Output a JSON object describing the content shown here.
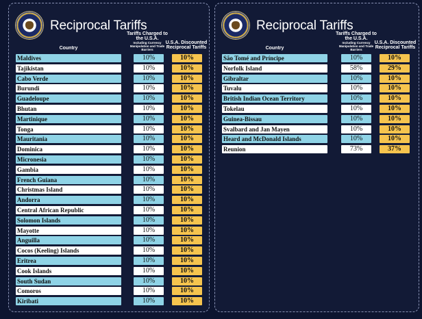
{
  "left": {
    "title": "Reciprocal Tariffs",
    "headers": {
      "country": "Country",
      "charged": "Tariffs Charged to the U.S.A.",
      "charged_sub": "Including Currency Manipulation and Trade Barriers",
      "discounted": "U.S.A. Discounted Reciprocal Tariffs"
    },
    "rows": [
      {
        "country": "Maldives",
        "charged": "10%",
        "discounted": "10%"
      },
      {
        "country": "Tajikistan",
        "charged": "10%",
        "discounted": "10%"
      },
      {
        "country": "Cabo Verde",
        "charged": "10%",
        "discounted": "10%"
      },
      {
        "country": "Burundi",
        "charged": "10%",
        "discounted": "10%"
      },
      {
        "country": "Guadeloupe",
        "charged": "10%",
        "discounted": "10%"
      },
      {
        "country": "Bhutan",
        "charged": "10%",
        "discounted": "10%"
      },
      {
        "country": "Martinique",
        "charged": "10%",
        "discounted": "10%"
      },
      {
        "country": "Tonga",
        "charged": "10%",
        "discounted": "10%"
      },
      {
        "country": "Mauritania",
        "charged": "10%",
        "discounted": "10%"
      },
      {
        "country": "Dominica",
        "charged": "10%",
        "discounted": "10%"
      },
      {
        "country": "Micronesia",
        "charged": "10%",
        "discounted": "10%"
      },
      {
        "country": "Gambia",
        "charged": "10%",
        "discounted": "10%"
      },
      {
        "country": "French Guiana",
        "charged": "10%",
        "discounted": "10%"
      },
      {
        "country": "Christmas Island",
        "charged": "10%",
        "discounted": "10%"
      },
      {
        "country": "Andorra",
        "charged": "10%",
        "discounted": "10%"
      },
      {
        "country": "Central African Republic",
        "charged": "10%",
        "discounted": "10%"
      },
      {
        "country": "Solomon Islands",
        "charged": "10%",
        "discounted": "10%"
      },
      {
        "country": "Mayotte",
        "charged": "10%",
        "discounted": "10%"
      },
      {
        "country": "Anguilla",
        "charged": "10%",
        "discounted": "10%"
      },
      {
        "country": "Cocos (Keeling) Islands",
        "charged": "10%",
        "discounted": "10%"
      },
      {
        "country": "Eritrea",
        "charged": "10%",
        "discounted": "10%"
      },
      {
        "country": "Cook Islands",
        "charged": "10%",
        "discounted": "10%"
      },
      {
        "country": "South Sudan",
        "charged": "10%",
        "discounted": "10%"
      },
      {
        "country": "Comoros",
        "charged": "10%",
        "discounted": "10%"
      },
      {
        "country": "Kiribati",
        "charged": "10%",
        "discounted": "10%"
      }
    ]
  },
  "right": {
    "title": "Reciprocal Tariffs",
    "headers": {
      "country": "Country",
      "charged": "Tariffs Charged to the U.S.A.",
      "charged_sub": "Including Currency Manipulation and Trade Barriers",
      "discounted": "U.S.A. Discounted Reciprocal Tariffs"
    },
    "rows": [
      {
        "country": "São Tomé and Príncipe",
        "charged": "10%",
        "discounted": "10%"
      },
      {
        "country": "Norfolk Island",
        "charged": "58%",
        "discounted": "29%"
      },
      {
        "country": "Gibraltar",
        "charged": "10%",
        "discounted": "10%"
      },
      {
        "country": "Tuvalu",
        "charged": "10%",
        "discounted": "10%"
      },
      {
        "country": "British Indian Ocean Territory",
        "charged": "10%",
        "discounted": "10%"
      },
      {
        "country": "Tokelau",
        "charged": "10%",
        "discounted": "10%"
      },
      {
        "country": "Guinea-Bissau",
        "charged": "10%",
        "discounted": "10%"
      },
      {
        "country": "Svalbard and Jan Mayen",
        "charged": "10%",
        "discounted": "10%"
      },
      {
        "country": "Heard and McDonald Islands",
        "charged": "10%",
        "discounted": "10%"
      },
      {
        "country": "Reunion",
        "charged": "73%",
        "discounted": "37%"
      }
    ]
  },
  "colors": {
    "background": "#0d1530",
    "row_blue": "#8fd3e6",
    "row_white": "#ffffff",
    "discount_gold": "#f6c44e"
  },
  "icons": {
    "seal": "presidential-seal-icon"
  }
}
